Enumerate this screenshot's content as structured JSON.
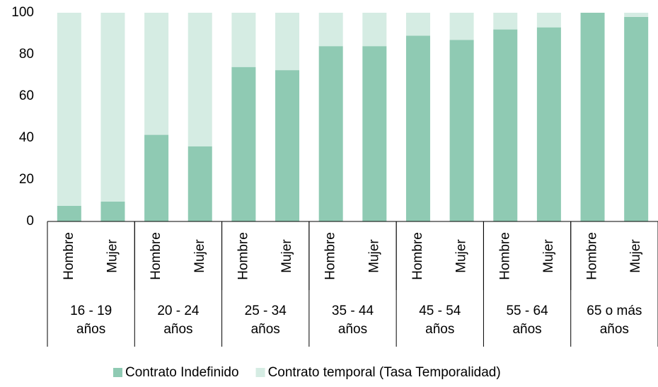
{
  "chart_data": {
    "type": "stacked_bar",
    "categories": [
      "Hombre",
      "Mujer",
      "Hombre",
      "Mujer",
      "Hombre",
      "Mujer",
      "Hombre",
      "Mujer",
      "Hombre",
      "Mujer",
      "Hombre",
      "Mujer",
      "Hombre",
      "Mujer"
    ],
    "groups": [
      "16 - 19 años",
      "20 - 24 años",
      "25 - 34 años",
      "35 - 44 años",
      "45 - 54 años",
      "55 - 64 años",
      "65 o más años"
    ],
    "series": [
      {
        "name": "Contrato Indefinido",
        "color": "#8fcab3",
        "values": [
          7.5,
          9.5,
          41.5,
          36,
          74,
          72.5,
          84,
          84,
          89,
          87,
          92,
          93,
          100,
          98
        ]
      },
      {
        "name": "Contrato temporal (Tasa Temporalidad)",
        "color": "#d5ece3",
        "values": [
          92.5,
          90.5,
          58.5,
          64,
          26,
          27.5,
          16,
          16,
          11,
          13,
          8,
          7,
          0,
          2
        ]
      }
    ],
    "ylim": [
      0,
      100
    ],
    "yticks": [
      0,
      20,
      40,
      60,
      80,
      100
    ],
    "grid": false,
    "legend": "bottom"
  }
}
